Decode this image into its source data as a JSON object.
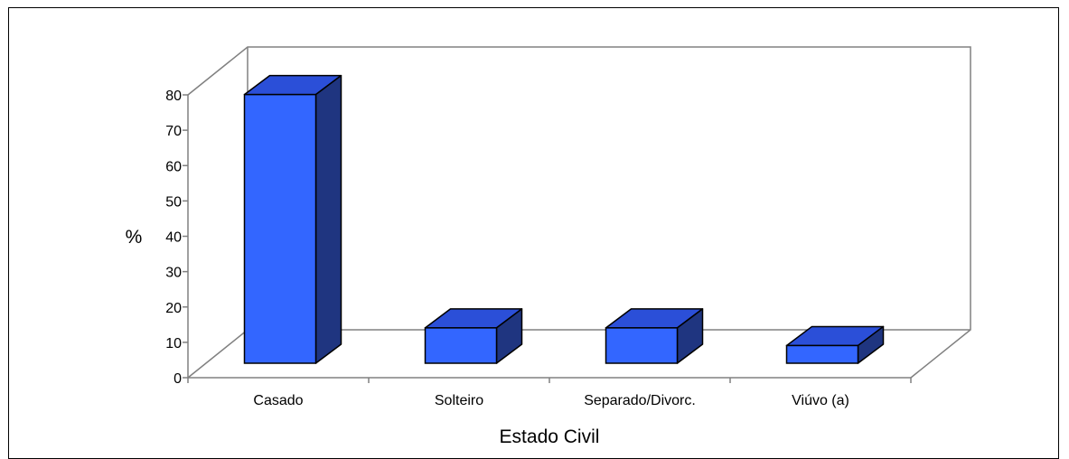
{
  "chart_data": {
    "type": "bar",
    "style": "3d-column",
    "categories": [
      "Casado",
      "Solteiro",
      "Separado/Divorc.",
      "Viúvo (a)"
    ],
    "values": [
      76,
      10,
      10,
      5
    ],
    "ylabel": "%",
    "xlabel": "Estado Civil",
    "ylim": [
      0,
      80
    ],
    "yticks": [
      0,
      10,
      20,
      30,
      40,
      50,
      60,
      70,
      80
    ],
    "grid": false,
    "legend": "none",
    "colors": {
      "bar_front": "#3366ff",
      "bar_top": "#2b4fd8",
      "bar_side": "#1f3580",
      "axis": "#808080",
      "outline": "#000000"
    }
  }
}
